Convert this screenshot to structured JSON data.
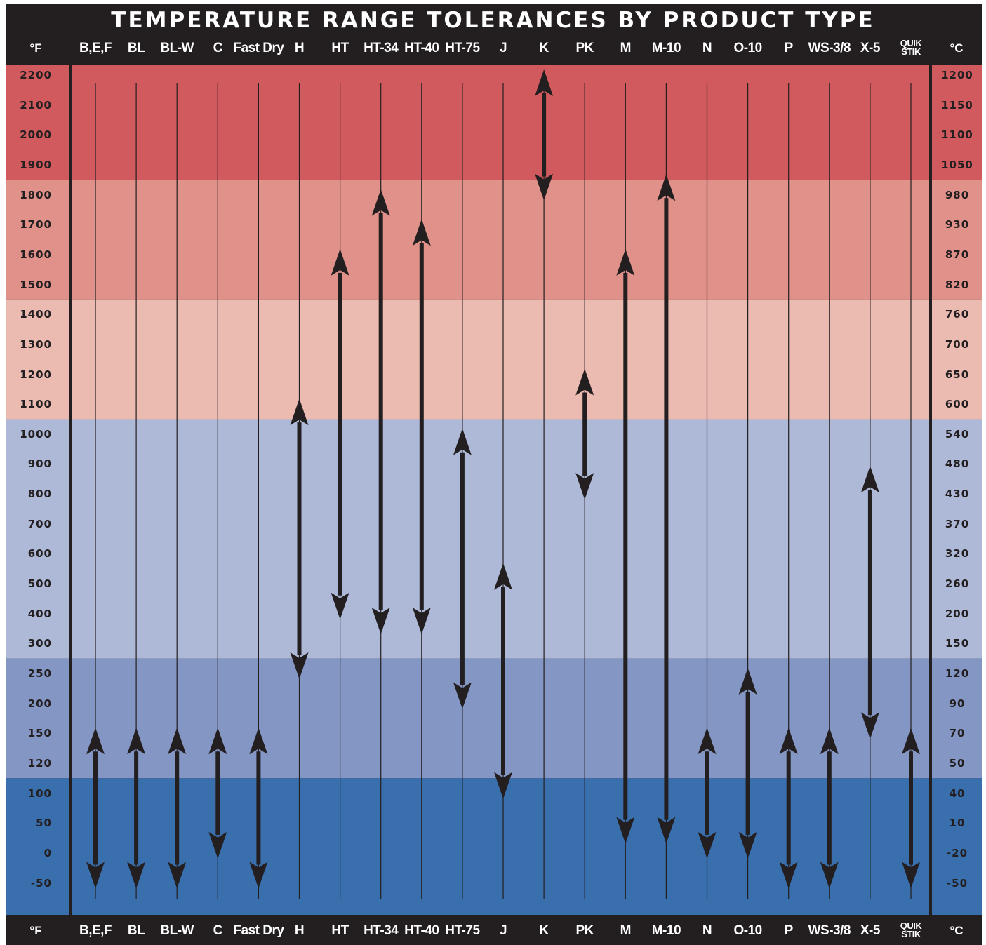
{
  "title": "TEMPERATURE RANGE TOLERANCES BY PRODUCT TYPE",
  "units": {
    "fahrenheit": "°F",
    "celsius": "°C"
  },
  "colors": {
    "frame": "#231f20",
    "band_hot": "#d05a5d",
    "band_warm": "#e0918a",
    "band_mild": "#ebbab1",
    "band_cool": "#aeb9d8",
    "band_cold": "#8496c4",
    "band_coldest": "#3a6fae",
    "arrow": "#231f20"
  },
  "chart_data": {
    "type": "range-arrows",
    "title": "TEMPERATURE RANGE TOLERANCES BY PRODUCT TYPE",
    "categories": [
      "B,E,F",
      "BL",
      "BL-W",
      "C",
      "Fast Dry",
      "H",
      "HT",
      "HT-34",
      "HT-40",
      "HT-75",
      "J",
      "K",
      "PK",
      "M",
      "M-10",
      "N",
      "O-10",
      "P",
      "WS-3/8",
      "X-5",
      "QUIK STIK"
    ],
    "y_ticks_f": [
      "2200",
      "2100",
      "2000",
      "1900",
      "1800",
      "1700",
      "1600",
      "1500",
      "1400",
      "1300",
      "1200",
      "1100",
      "1000",
      "900",
      "800",
      "700",
      "600",
      "500",
      "400",
      "300",
      "250",
      "200",
      "150",
      "120",
      "100",
      "50",
      "0",
      "-50"
    ],
    "y_ticks_c": [
      "1200",
      "1150",
      "1100",
      "1050",
      "980",
      "930",
      "870",
      "820",
      "760",
      "700",
      "650",
      "600",
      "540",
      "480",
      "430",
      "370",
      "320",
      "260",
      "200",
      "150",
      "120",
      "90",
      "70",
      "50",
      "40",
      "10",
      "-20",
      "-50"
    ],
    "ranges_f": [
      {
        "product": "B,E,F",
        "min": -50,
        "max": 150
      },
      {
        "product": "BL",
        "min": -50,
        "max": 150
      },
      {
        "product": "BL-W",
        "min": -50,
        "max": 150
      },
      {
        "product": "C",
        "min": 0,
        "max": 150
      },
      {
        "product": "Fast Dry",
        "min": -50,
        "max": 150
      },
      {
        "product": "H",
        "min": 250,
        "max": 1100
      },
      {
        "product": "HT",
        "min": 400,
        "max": 1600
      },
      {
        "product": "HT-34",
        "min": 350,
        "max": 1800
      },
      {
        "product": "HT-40",
        "min": 350,
        "max": 1700
      },
      {
        "product": "HT-75",
        "min": 200,
        "max": 1000
      },
      {
        "product": "J",
        "min": 100,
        "max": 550
      },
      {
        "product": "K",
        "min": 1800,
        "max": 2200
      },
      {
        "product": "PK",
        "min": 800,
        "max": 1200
      },
      {
        "product": "M",
        "min": 25,
        "max": 1600
      },
      {
        "product": "M-10",
        "min": 25,
        "max": 1850
      },
      {
        "product": "N",
        "min": 0,
        "max": 150
      },
      {
        "product": "O-10",
        "min": 0,
        "max": 250
      },
      {
        "product": "P",
        "min": -50,
        "max": 150
      },
      {
        "product": "WS-3/8",
        "min": -50,
        "max": 150
      },
      {
        "product": "X-5",
        "min": 150,
        "max": 875
      },
      {
        "product": "QUIK STIK",
        "min": -50,
        "max": 150
      }
    ],
    "background_bands": [
      {
        "from_tick": "2200",
        "to_tick": "1900",
        "color": "band_hot"
      },
      {
        "from_tick": "1800",
        "to_tick": "1500",
        "color": "band_warm"
      },
      {
        "from_tick": "1400",
        "to_tick": "1100",
        "color": "band_mild"
      },
      {
        "from_tick": "1000",
        "to_tick": "300",
        "color": "band_cool"
      },
      {
        "from_tick": "250",
        "to_tick": "120",
        "color": "band_cold"
      },
      {
        "from_tick": "100",
        "to_tick": "-50",
        "color": "band_coldest"
      }
    ],
    "grid": false,
    "legend": "none"
  }
}
